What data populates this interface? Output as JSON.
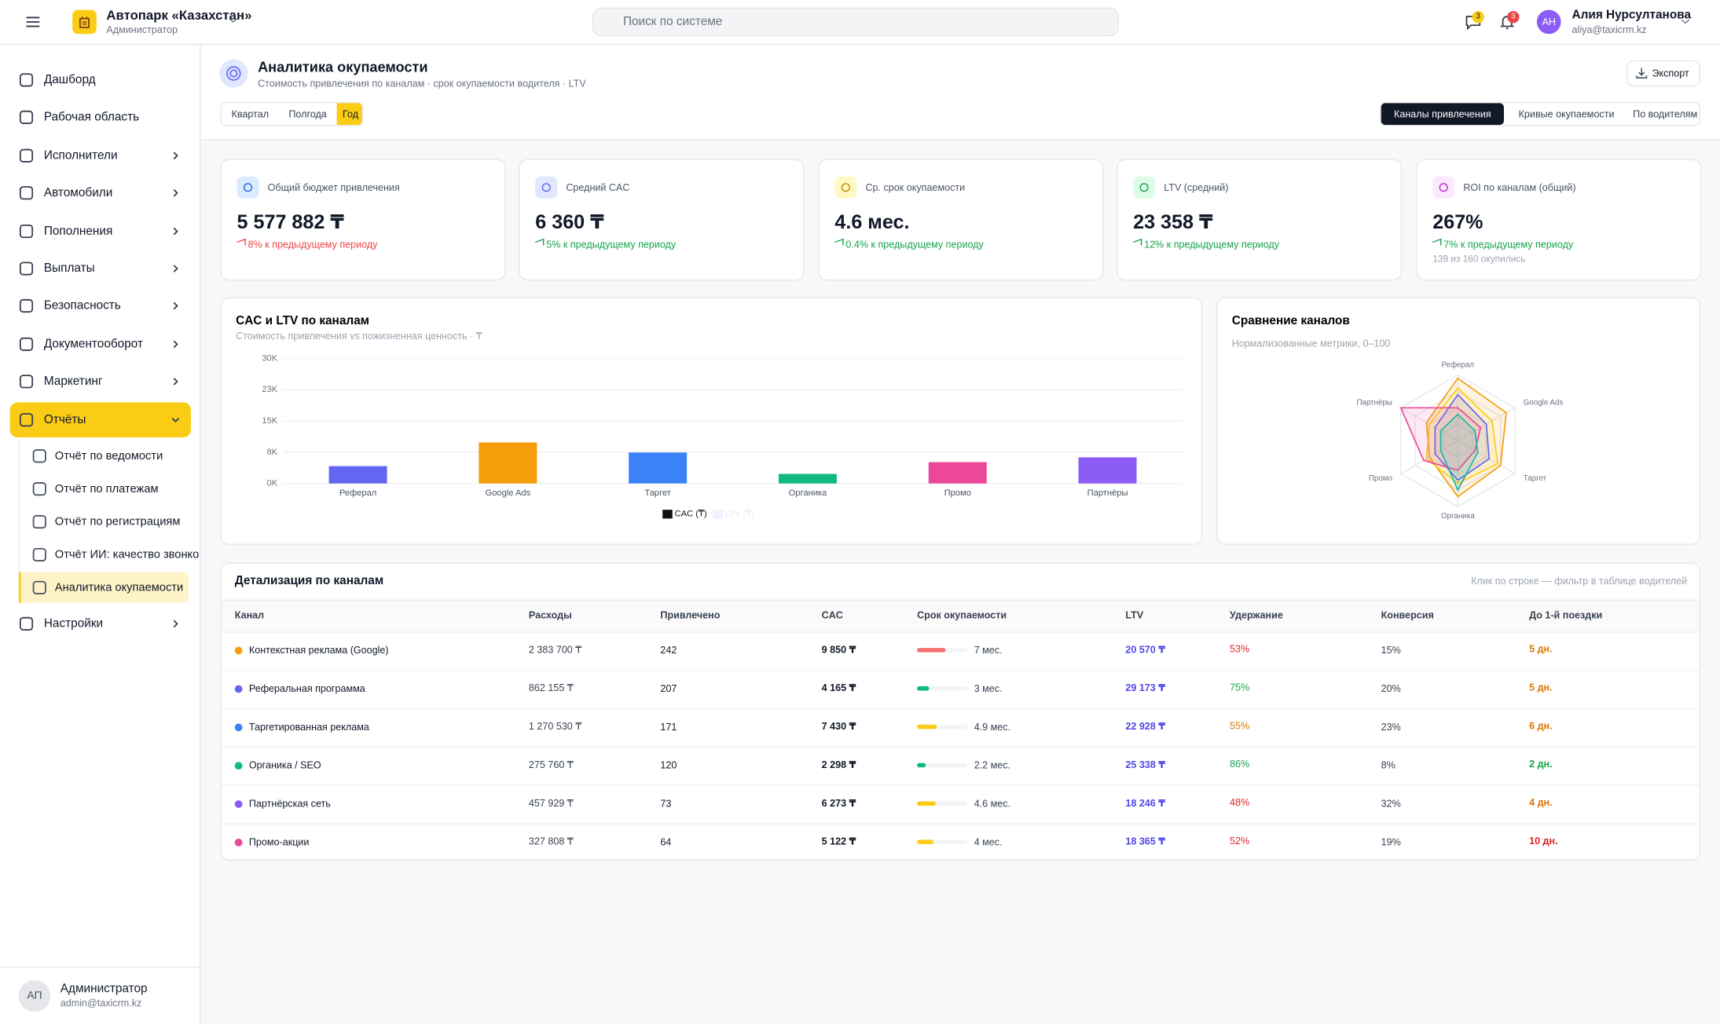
{
  "header": {
    "company": "Автопарк «Казахстан»",
    "role": "Администратор",
    "search": "Поиск по системе",
    "chat_badge": 3,
    "bell_badge": 3,
    "user_initials": "АН",
    "user_name": "Алия Нурсултанова",
    "user_email": "aliya@taxicrm.kz"
  },
  "sidebar": {
    "items": [
      "Дашборд",
      "Рабочая область",
      "Исполнители",
      "Автомобили",
      "Пополнения",
      "Выплаты",
      "Безопасность",
      "Документооборот",
      "Маркетинг",
      "Отчёты"
    ],
    "submenu": [
      "Отчёт по ведомости",
      "Отчёт по платежам",
      "Отчёт по регистрациям",
      "Отчёт ИИ: качество звонков",
      "Аналитика окупаемости"
    ],
    "last": "Настройки",
    "footer": {
      "initials": "АП",
      "name": "Администратор",
      "email": "admin@taxicrm.kz"
    }
  },
  "page": {
    "title": "Аналитика окупаемости",
    "subtitle": "Стоимость привлечения по каналам · срок окупаемости водителя · LTV",
    "export": "Экспорт",
    "periods": [
      "Квартал",
      "Полгода",
      "Год"
    ],
    "tabs": [
      "Каналы привлечения",
      "Кривые окупаемости",
      "По водителям"
    ]
  },
  "kpis": [
    {
      "label": "Общий бюджет привлечения",
      "value": "5 577 882 ₸",
      "change": "8% к предыдущему периоду",
      "color": "#ef4444"
    },
    {
      "label": "Средний CAC",
      "value": "6 360 ₸",
      "change": "5% к предыдущему периоду",
      "color": "#16a34a"
    },
    {
      "label": "Ср. срок окупаемости",
      "value": "4.6 мес.",
      "change": "0.4% к предыдущему периоду",
      "color": "#16a34a"
    },
    {
      "label": "LTV (средний)",
      "value": "23 358 ₸",
      "change": "12% к предыдущему периоду",
      "color": "#16a34a"
    },
    {
      "label": "ROI по каналам (общий)",
      "value": "267%",
      "change": "7% к предыдущему периоду",
      "color": "#16a34a",
      "note": "139 из 160 окупились"
    }
  ],
  "chart_data": [
    {
      "type": "bar",
      "title": "CAC и LTV по каналам",
      "subtitle": "Стоимость привлечения vs пожизненная ценность · ₸",
      "categories": [
        "Реферал",
        "Google Ads",
        "Таргет",
        "Органика",
        "Промо",
        "Партнёры"
      ],
      "series": [
        {
          "name": "CAC (₸)",
          "color": "#111111",
          "colors": [
            "#6366f1",
            "#f59e0b",
            "#3b82f6",
            "#10b981",
            "#ec4899",
            "#8b5cf6"
          ],
          "values": [
            4165,
            9850,
            7430,
            2298,
            5122,
            6273
          ]
        },
        {
          "name": "LTV (₸)",
          "color": "#e0e7ff",
          "hidden": true
        }
      ],
      "ylim": [
        0,
        30000
      ],
      "yticks": [
        {
          "value": 0,
          "label": "0K"
        },
        {
          "value": 7500,
          "label": "8K"
        },
        {
          "value": 15000,
          "label": "15K"
        },
        {
          "value": 22500,
          "label": "23K"
        },
        {
          "value": 30000,
          "label": "30K"
        }
      ],
      "grid": true
    },
    {
      "type": "radar",
      "title": "Сравнение каналов",
      "subtitle": "Нормализованные метрики, 0–100",
      "categories": [
        "Реферал",
        "Google Ads",
        "Таргет",
        "Органика",
        "Промо",
        "Партнёры"
      ],
      "rlim": [
        0,
        100
      ],
      "series": [
        {
          "color": "#f59e0b",
          "values": [
            95,
            85,
            75,
            85,
            50,
            55
          ]
        },
        {
          "color": "#facc15",
          "values": [
            80,
            60,
            70,
            65,
            55,
            50
          ]
        },
        {
          "color": "#6366f1",
          "values": [
            70,
            50,
            55,
            60,
            40,
            40
          ]
        },
        {
          "color": "#ec4899",
          "values": [
            50,
            40,
            30,
            45,
            60,
            100
          ]
        },
        {
          "color": "#14b8a6",
          "values": [
            40,
            30,
            35,
            75,
            30,
            30
          ]
        }
      ]
    }
  ],
  "table": {
    "title": "Детализация по каналам",
    "hint": "Клик по строке — фильтр в таблице водителей",
    "columns": [
      "Канал",
      "Расходы",
      "Привлечено",
      "CAC",
      "Срок окупаемости",
      "LTV",
      "Удержание",
      "Конверсия",
      "До 1-й поездки"
    ],
    "rows": [
      {
        "channel": "Контекстная реклама (Google)",
        "dot": "#f59e0b",
        "expenses": "2 383 700 ₸",
        "attracted": 242,
        "cac": "9 850 ₸",
        "payback": 7,
        "payback_label": "7 мес.",
        "payback_color": "#f87171",
        "ltv": "20 570 ₸",
        "retention": "53%",
        "retention_color": "#dc2626",
        "conversion": "15%",
        "first_trip": "5 дн.",
        "first_trip_color": "#d97706"
      },
      {
        "channel": "Реферальная программа",
        "dot": "#6366f1",
        "expenses": "862 155 ₸",
        "attracted": 207,
        "cac": "4 165 ₸",
        "payback": 3,
        "payback_label": "3 мес.",
        "payback_color": "#10b981",
        "ltv": "29 173 ₸",
        "retention": "75%",
        "retention_color": "#16a34a",
        "conversion": "20%",
        "first_trip": "5 дн.",
        "first_trip_color": "#d97706"
      },
      {
        "channel": "Таргетированная реклама",
        "dot": "#3b82f6",
        "expenses": "1 270 530 ₸",
        "attracted": 171,
        "cac": "7 430 ₸",
        "payback": 4.9,
        "payback_label": "4.9 мес.",
        "payback_color": "#facc15",
        "ltv": "22 928 ₸",
        "retention": "55%",
        "retention_color": "#d97706",
        "conversion": "23%",
        "first_trip": "6 дн.",
        "first_trip_color": "#d97706"
      },
      {
        "channel": "Органика / SEO",
        "dot": "#10b981",
        "expenses": "275 760 ₸",
        "attracted": 120,
        "cac": "2 298 ₸",
        "payback": 2.2,
        "payback_label": "2.2 мес.",
        "payback_color": "#10b981",
        "ltv": "25 338 ₸",
        "retention": "86%",
        "retention_color": "#16a34a",
        "conversion": "8%",
        "first_trip": "2 дн.",
        "first_trip_color": "#16a34a"
      },
      {
        "channel": "Партнёрская сеть",
        "dot": "#8b5cf6",
        "expenses": "457 929 ₸",
        "attracted": 73,
        "cac": "6 273 ₸",
        "payback": 4.6,
        "payback_label": "4.6 мес.",
        "payback_color": "#facc15",
        "ltv": "18 246 ₸",
        "retention": "48%",
        "retention_color": "#dc2626",
        "conversion": "32%",
        "first_trip": "4 дн.",
        "first_trip_color": "#d97706"
      },
      {
        "channel": "Промо-акции",
        "dot": "#ec4899",
        "expenses": "327 808 ₸",
        "attracted": 64,
        "cac": "5 122 ₸",
        "payback": 4,
        "payback_label": "4 мес.",
        "payback_color": "#facc15",
        "ltv": "18 365 ₸",
        "retention": "52%",
        "retention_color": "#dc2626",
        "conversion": "19%",
        "first_trip": "10 дн.",
        "first_trip_color": "#dc2626"
      }
    ]
  }
}
